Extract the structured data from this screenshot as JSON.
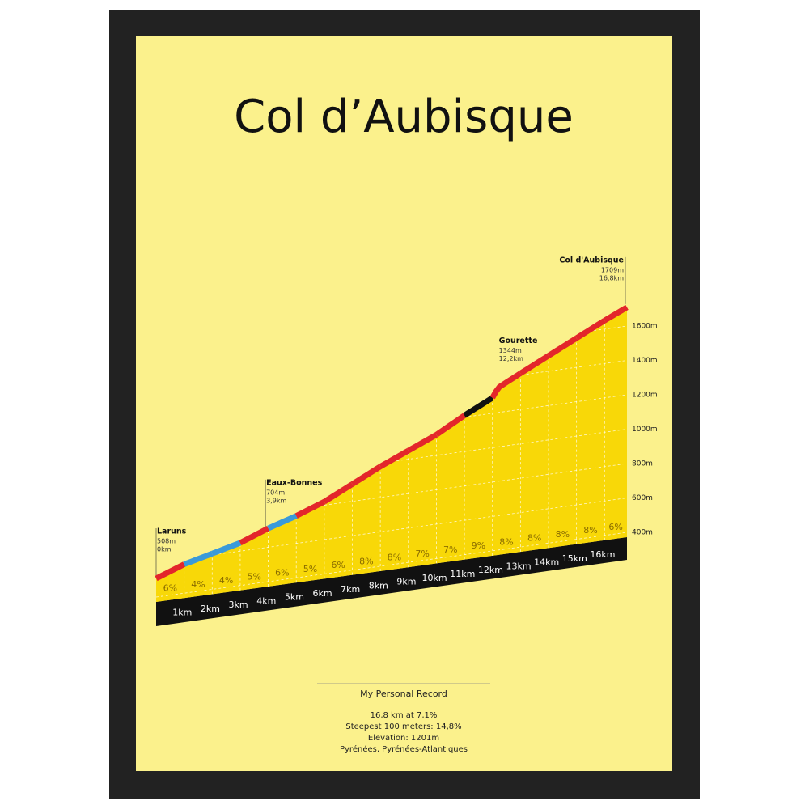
{
  "chart_data": {
    "type": "profile",
    "title": "Col d’Aubisque",
    "x": [
      0,
      1,
      2,
      3,
      3.9,
      4,
      5,
      6,
      7,
      8,
      9,
      10,
      11,
      12,
      12.2,
      13,
      14,
      15,
      16,
      16.8
    ],
    "values": [
      508,
      568,
      608,
      648,
      704,
      710,
      760,
      820,
      900,
      980,
      1050,
      1120,
      1210,
      1290,
      1344,
      1410,
      1490,
      1570,
      1650,
      1709
    ],
    "xlim": [
      0,
      16.8
    ],
    "ylim": [
      400,
      1709
    ],
    "xticks": [
      {
        "value": 1,
        "label": "1km"
      },
      {
        "value": 2,
        "label": "2km"
      },
      {
        "value": 3,
        "label": "3km"
      },
      {
        "value": 4,
        "label": "4km"
      },
      {
        "value": 5,
        "label": "5km"
      },
      {
        "value": 6,
        "label": "6km"
      },
      {
        "value": 7,
        "label": "7km"
      },
      {
        "value": 8,
        "label": "8km"
      },
      {
        "value": 9,
        "label": "9km"
      },
      {
        "value": 10,
        "label": "10km"
      },
      {
        "value": 11,
        "label": "11km"
      },
      {
        "value": 12,
        "label": "12km"
      },
      {
        "value": 13,
        "label": "13km"
      },
      {
        "value": 14,
        "label": "14km"
      },
      {
        "value": 15,
        "label": "15km"
      },
      {
        "value": 16,
        "label": "16km"
      }
    ],
    "yticks": [
      {
        "value": 400,
        "label": "400m"
      },
      {
        "value": 600,
        "label": "600m"
      },
      {
        "value": 800,
        "label": "800m"
      },
      {
        "value": 1000,
        "label": "1000m"
      },
      {
        "value": 1200,
        "label": "1200m"
      },
      {
        "value": 1400,
        "label": "1400m"
      },
      {
        "value": 1600,
        "label": "1600m"
      }
    ],
    "gradients": [
      6,
      4,
      4,
      5,
      6,
      5,
      6,
      8,
      8,
      7,
      7,
      9,
      8,
      8,
      8,
      8,
      6
    ],
    "gradient_labels": [
      "6%",
      "4%",
      "4%",
      "5%",
      "6%",
      "5%",
      "6%",
      "8%",
      "8%",
      "7%",
      "7%",
      "9%",
      "8%",
      "8%",
      "8%",
      "8%",
      "6%"
    ],
    "segment_colors": [
      "#e3262b",
      "#3a9ad9",
      "#3a9ad9",
      "#e3262b",
      "#3a9ad9",
      "#e3262b",
      "#e3262b",
      "#e3262b",
      "#e3262b",
      "#e3262b",
      "#e3262b",
      "#111111",
      "#e3262b",
      "#e3262b",
      "#e3262b",
      "#e3262b",
      "#e3262b"
    ],
    "fill_color": "#f8d808",
    "grid": true,
    "annotations": [
      {
        "label": "Laruns",
        "elevation": {
          "value": 508,
          "label": "508m"
        },
        "distance": {
          "value": 0,
          "label": "0km"
        }
      },
      {
        "label": "Eaux-Bonnes",
        "elevation": {
          "value": 704,
          "label": "704m"
        },
        "distance": {
          "value": 3.9,
          "label": "3,9km"
        }
      },
      {
        "label": "Gourette",
        "elevation": {
          "value": 1344,
          "label": "1344m"
        },
        "distance": {
          "value": 12.2,
          "label": "12,2km"
        }
      },
      {
        "label": "Col d'Aubisque",
        "elevation": {
          "value": 1709,
          "label": "1709m"
        },
        "distance": {
          "value": 16.8,
          "label": "16,8km"
        }
      }
    ]
  },
  "footer": {
    "heading": "My Personal Record",
    "lines": [
      "16,8 km at 7,1%",
      "Steepest 100 meters: 14,8%",
      "Elevation: 1201m",
      "Pyrénées, Pyrénées-Atlantiques"
    ]
  }
}
